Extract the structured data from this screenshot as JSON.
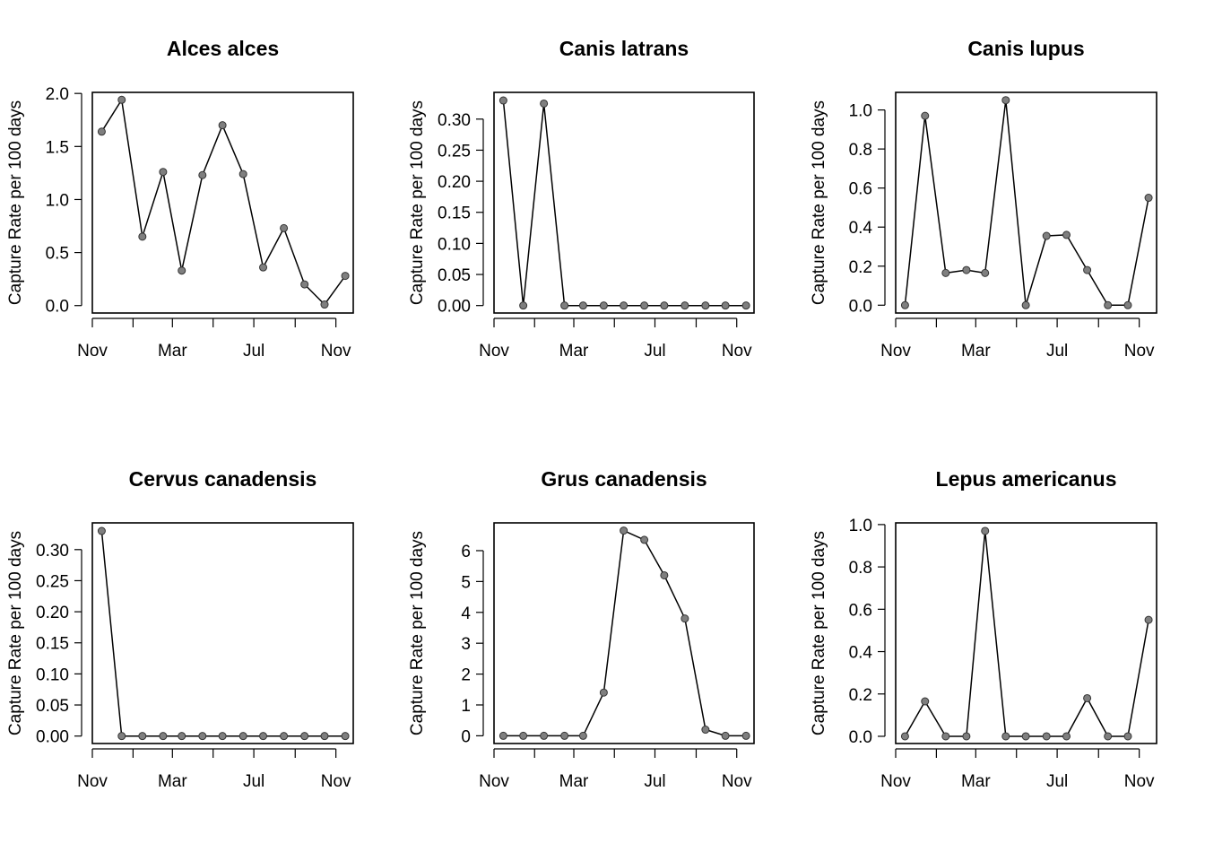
{
  "chart_data": [
    {
      "type": "line",
      "title": "Alces alces",
      "ylabel": "Capture Rate per 100 days",
      "xlabel": "",
      "x": [
        "2020-11-15",
        "2020-12-15",
        "2021-01-15",
        "2021-02-15",
        "2021-03-15",
        "2021-04-15",
        "2021-05-15",
        "2021-06-15",
        "2021-07-15",
        "2021-08-15",
        "2021-09-15",
        "2021-10-15",
        "2021-11-15"
      ],
      "xlim": [
        "2020-11-01",
        "2021-11-27"
      ],
      "x_tick_labels": [
        "Nov",
        "Mar",
        "Jul",
        "Nov"
      ],
      "x_tick_dates": [
        "2020-11-01",
        "2021-03-01",
        "2021-07-01",
        "2021-11-01"
      ],
      "x_minor_tick_dates": [
        "2021-01-01",
        "2021-05-01",
        "2021-09-01"
      ],
      "values": [
        1.64,
        1.94,
        0.65,
        1.26,
        0.33,
        1.23,
        1.7,
        1.24,
        0.36,
        0.73,
        0.2,
        0.01,
        0.28
      ],
      "ylim": [
        -0.07,
        2.01
      ],
      "yticks": [
        0.0,
        0.5,
        1.0,
        1.5,
        2.0
      ],
      "ytick_labels": [
        "0.0",
        "0.5",
        "1.0",
        "1.5",
        "2.0"
      ],
      "line_color": "#000000",
      "point_color": "#7f7f7f"
    },
    {
      "type": "line",
      "title": "Canis latrans",
      "ylabel": "Capture Rate per 100 days",
      "xlabel": "",
      "x": [
        "2020-11-15",
        "2020-12-15",
        "2021-01-15",
        "2021-02-15",
        "2021-03-15",
        "2021-04-15",
        "2021-05-15",
        "2021-06-15",
        "2021-07-15",
        "2021-08-15",
        "2021-09-15",
        "2021-10-15",
        "2021-11-15"
      ],
      "xlim": [
        "2020-11-01",
        "2021-11-27"
      ],
      "x_tick_labels": [
        "Nov",
        "Mar",
        "Jul",
        "Nov"
      ],
      "x_tick_dates": [
        "2020-11-01",
        "2021-03-01",
        "2021-07-01",
        "2021-11-01"
      ],
      "x_minor_tick_dates": [
        "2021-01-01",
        "2021-05-01",
        "2021-09-01"
      ],
      "values": [
        0.33,
        0.0,
        0.325,
        0.0,
        0.0,
        0.0,
        0.0,
        0.0,
        0.0,
        0.0,
        0.0,
        0.0,
        0.0
      ],
      "ylim": [
        -0.012,
        0.343
      ],
      "yticks": [
        0.0,
        0.05,
        0.1,
        0.15,
        0.2,
        0.25,
        0.3
      ],
      "ytick_labels": [
        "0.00",
        "0.05",
        "0.10",
        "0.15",
        "0.20",
        "0.25",
        "0.30"
      ],
      "line_color": "#000000",
      "point_color": "#7f7f7f"
    },
    {
      "type": "line",
      "title": "Canis lupus",
      "ylabel": "Capture Rate per 100 days",
      "xlabel": "",
      "x": [
        "2020-11-15",
        "2020-12-15",
        "2021-01-15",
        "2021-02-15",
        "2021-03-15",
        "2021-04-15",
        "2021-05-15",
        "2021-06-15",
        "2021-07-15",
        "2021-08-15",
        "2021-09-15",
        "2021-10-15",
        "2021-11-15"
      ],
      "xlim": [
        "2020-11-01",
        "2021-11-27"
      ],
      "x_tick_labels": [
        "Nov",
        "Mar",
        "Jul",
        "Nov"
      ],
      "x_tick_dates": [
        "2020-11-01",
        "2021-03-01",
        "2021-07-01",
        "2021-11-01"
      ],
      "x_minor_tick_dates": [
        "2021-01-01",
        "2021-05-01",
        "2021-09-01"
      ],
      "values": [
        0.0,
        0.97,
        0.165,
        0.18,
        0.165,
        1.05,
        0.0,
        0.355,
        0.36,
        0.18,
        0.0,
        0.0,
        0.55
      ],
      "ylim": [
        -0.04,
        1.09
      ],
      "yticks": [
        0.0,
        0.2,
        0.4,
        0.6,
        0.8,
        1.0
      ],
      "ytick_labels": [
        "0.0",
        "0.2",
        "0.4",
        "0.6",
        "0.8",
        "1.0"
      ],
      "line_color": "#000000",
      "point_color": "#7f7f7f"
    },
    {
      "type": "line",
      "title": "Cervus canadensis",
      "ylabel": "Capture Rate per 100 days",
      "xlabel": "",
      "x": [
        "2020-11-15",
        "2020-12-15",
        "2021-01-15",
        "2021-02-15",
        "2021-03-15",
        "2021-04-15",
        "2021-05-15",
        "2021-06-15",
        "2021-07-15",
        "2021-08-15",
        "2021-09-15",
        "2021-10-15",
        "2021-11-15"
      ],
      "xlim": [
        "2020-11-01",
        "2021-11-27"
      ],
      "x_tick_labels": [
        "Nov",
        "Mar",
        "Jul",
        "Nov"
      ],
      "x_tick_dates": [
        "2020-11-01",
        "2021-03-01",
        "2021-07-01",
        "2021-11-01"
      ],
      "x_minor_tick_dates": [
        "2021-01-01",
        "2021-05-01",
        "2021-09-01"
      ],
      "values": [
        0.33,
        0.0,
        0.0,
        0.0,
        0.0,
        0.0,
        0.0,
        0.0,
        0.0,
        0.0,
        0.0,
        0.0,
        0.0
      ],
      "ylim": [
        -0.012,
        0.343
      ],
      "yticks": [
        0.0,
        0.05,
        0.1,
        0.15,
        0.2,
        0.25,
        0.3
      ],
      "ytick_labels": [
        "0.00",
        "0.05",
        "0.10",
        "0.15",
        "0.20",
        "0.25",
        "0.30"
      ],
      "line_color": "#000000",
      "point_color": "#7f7f7f"
    },
    {
      "type": "line",
      "title": "Grus canadensis",
      "ylabel": "Capture Rate per 100 days",
      "xlabel": "",
      "x": [
        "2020-11-15",
        "2020-12-15",
        "2021-01-15",
        "2021-02-15",
        "2021-03-15",
        "2021-04-15",
        "2021-05-15",
        "2021-06-15",
        "2021-07-15",
        "2021-08-15",
        "2021-09-15",
        "2021-10-15",
        "2021-11-15"
      ],
      "xlim": [
        "2020-11-01",
        "2021-11-27"
      ],
      "x_tick_labels": [
        "Nov",
        "Mar",
        "Jul",
        "Nov"
      ],
      "x_tick_dates": [
        "2020-11-01",
        "2021-03-01",
        "2021-07-01",
        "2021-11-01"
      ],
      "x_minor_tick_dates": [
        "2021-01-01",
        "2021-05-01",
        "2021-09-01"
      ],
      "values": [
        0.0,
        0.0,
        0.0,
        0.0,
        0.0,
        1.4,
        6.65,
        6.35,
        5.2,
        3.8,
        0.2,
        0.0,
        0.0
      ],
      "ylim": [
        -0.25,
        6.9
      ],
      "yticks": [
        0,
        1,
        2,
        3,
        4,
        5,
        6
      ],
      "ytick_labels": [
        "0",
        "1",
        "2",
        "3",
        "4",
        "5",
        "6"
      ],
      "line_color": "#000000",
      "point_color": "#7f7f7f"
    },
    {
      "type": "line",
      "title": "Lepus americanus",
      "ylabel": "Capture Rate per 100 days",
      "xlabel": "",
      "x": [
        "2020-11-15",
        "2020-12-15",
        "2021-01-15",
        "2021-02-15",
        "2021-03-15",
        "2021-04-15",
        "2021-05-15",
        "2021-06-15",
        "2021-07-15",
        "2021-08-15",
        "2021-09-15",
        "2021-10-15",
        "2021-11-15"
      ],
      "xlim": [
        "2020-11-01",
        "2021-11-27"
      ],
      "x_tick_labels": [
        "Nov",
        "Mar",
        "Jul",
        "Nov"
      ],
      "x_tick_dates": [
        "2020-11-01",
        "2021-03-01",
        "2021-07-01",
        "2021-11-01"
      ],
      "x_minor_tick_dates": [
        "2021-01-01",
        "2021-05-01",
        "2021-09-01"
      ],
      "values": [
        0.0,
        0.165,
        0.0,
        0.0,
        0.97,
        0.0,
        0.0,
        0.0,
        0.0,
        0.18,
        0.0,
        0.0,
        0.55
      ],
      "ylim": [
        -0.034,
        1.008
      ],
      "yticks": [
        0.0,
        0.2,
        0.4,
        0.6,
        0.8,
        1.0
      ],
      "ytick_labels": [
        "0.0",
        "0.2",
        "0.4",
        "0.6",
        "0.8",
        "1.0"
      ],
      "line_color": "#000000",
      "point_color": "#7f7f7f"
    }
  ]
}
